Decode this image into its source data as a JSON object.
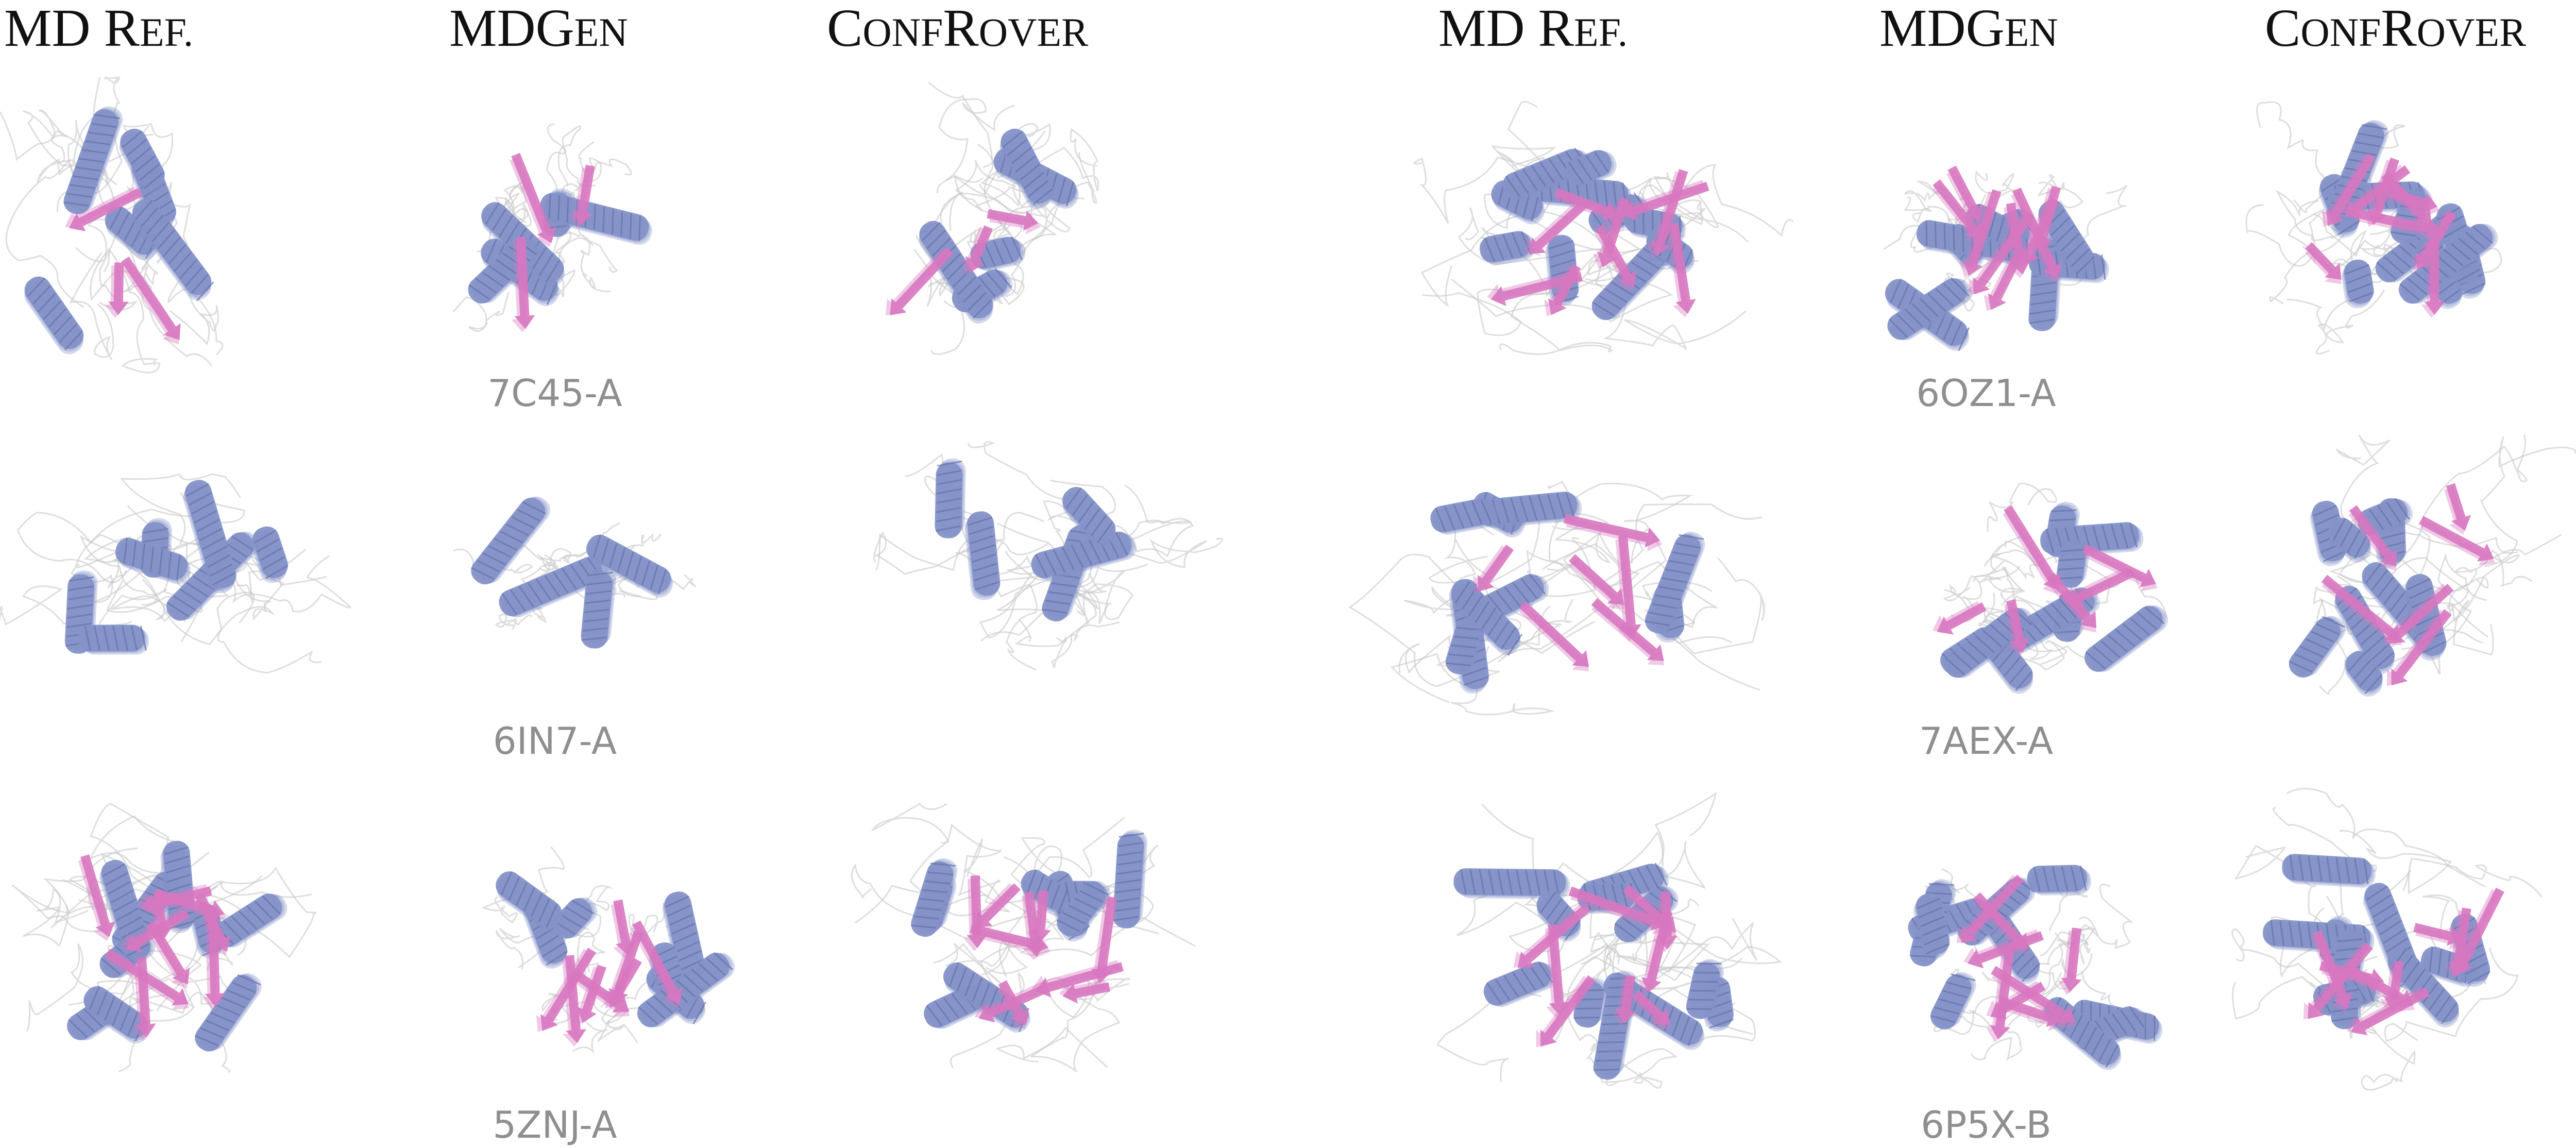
{
  "headers": {
    "left_md": "MD Ref.",
    "left_mdgen": "MDGen",
    "left_confrover": "ConfRover",
    "right_md": "MD Ref.",
    "right_mdgen": "MDGen",
    "right_confrover": "ConfRover"
  },
  "header_parts": {
    "md_a": "MD R",
    "md_b": "EF.",
    "mdgen_a": "MDG",
    "mdgen_b": "EN",
    "conf_a": "C",
    "conf_b": "ONF",
    "conf_c": "R",
    "conf_d": "OVER"
  },
  "labels": {
    "left_row1": "7C45-A",
    "left_row2": "6IN7-A",
    "left_row3": "5ZNJ-A",
    "right_row1": "6OZ1-A",
    "right_row2": "7AEX-A",
    "right_row3": "6P5X-B"
  },
  "colors": {
    "helix": "#8593c8",
    "strand": "#d877c0",
    "coil": "#c8c8c8",
    "label": "#8f8f8f",
    "header": "#111111"
  }
}
